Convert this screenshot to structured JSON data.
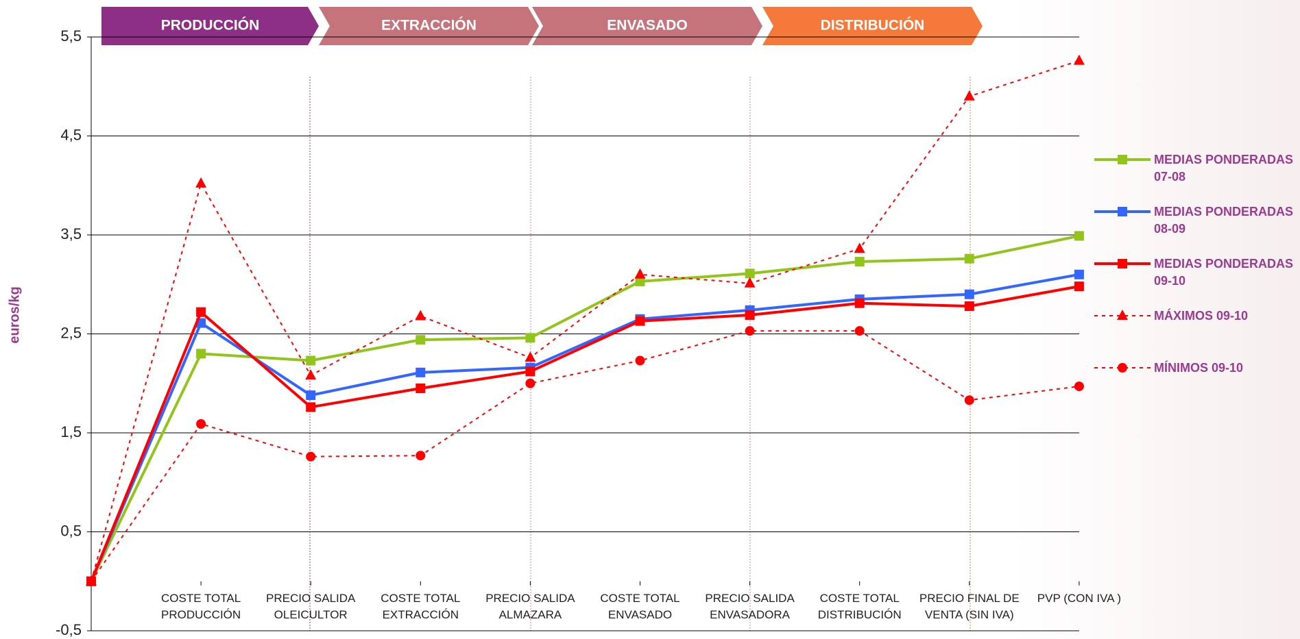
{
  "chart_data": {
    "type": "line",
    "y_label": "euros/kg",
    "stages": [
      {
        "label": "PRODUCCIÓN",
        "color": "#8e2f86"
      },
      {
        "label": "EXTRACCIÓN",
        "color": "#c4747a"
      },
      {
        "label": "ENVASADO",
        "color": "#c4747a"
      },
      {
        "label": "DISTRIBUCIÓN",
        "color": "#f5793b"
      }
    ],
    "categories": [
      null,
      "COSTE TOTAL PRODUCCIÓN",
      "PRECIO SALIDA OLEICULTOR",
      "COSTE TOTAL EXTRACCIÓN",
      "PRECIO SALIDA ALMAZARA",
      "COSTE TOTAL ENVASADO",
      "PRECIO SALIDA ENVASADORA",
      "COSTE TOTAL DISTRIBUCIÓN",
      "PRECIO FINAL DE VENTA (SIN IVA)",
      "PVP (CON IVA )"
    ],
    "series": [
      {
        "name": "MEDIAS PONDERADAS 07-08",
        "color": "#92c51b",
        "marker": "square",
        "dashed": false,
        "values": [
          0,
          2.3,
          2.23,
          2.44,
          2.46,
          3.03,
          3.11,
          3.23,
          3.26,
          3.49
        ]
      },
      {
        "name": "MEDIAS PONDERADAS 08-09",
        "color": "#3366ff",
        "marker": "square",
        "dashed": false,
        "values": [
          0,
          2.61,
          1.88,
          2.11,
          2.16,
          2.65,
          2.74,
          2.85,
          2.9,
          3.1
        ]
      },
      {
        "name": "MEDIAS PONDERADAS 09-10",
        "color": "#ff0000",
        "marker": "square",
        "dashed": false,
        "values": [
          0,
          2.72,
          1.76,
          1.95,
          2.12,
          2.63,
          2.69,
          2.81,
          2.78,
          2.98
        ]
      },
      {
        "name": "MÁXIMOS 09-10",
        "color": "#ff0000",
        "marker": "triangle",
        "dashed": true,
        "values": [
          0,
          4.02,
          2.08,
          2.68,
          2.26,
          3.1,
          3.01,
          3.36,
          4.9,
          5.26
        ]
      },
      {
        "name": "MÍNIMOS 09-10",
        "color": "#ff0000",
        "marker": "circle",
        "dashed": true,
        "values": [
          0,
          1.59,
          1.26,
          1.27,
          2.0,
          2.23,
          2.53,
          2.53,
          1.83,
          1.97
        ]
      }
    ],
    "ylim": [
      -0.5,
      5.5
    ],
    "yticks": [
      {
        "value": -0.5,
        "label": "-0,5"
      },
      {
        "value": 0.5,
        "label": "0,5"
      },
      {
        "value": 1.5,
        "label": "1,5"
      },
      {
        "value": 2.5,
        "label": "2,5"
      },
      {
        "value": 3.5,
        "label": "3,5"
      },
      {
        "value": 4.5,
        "label": "4,5"
      },
      {
        "value": 5.5,
        "label": "5,5"
      }
    ],
    "grid": true
  }
}
